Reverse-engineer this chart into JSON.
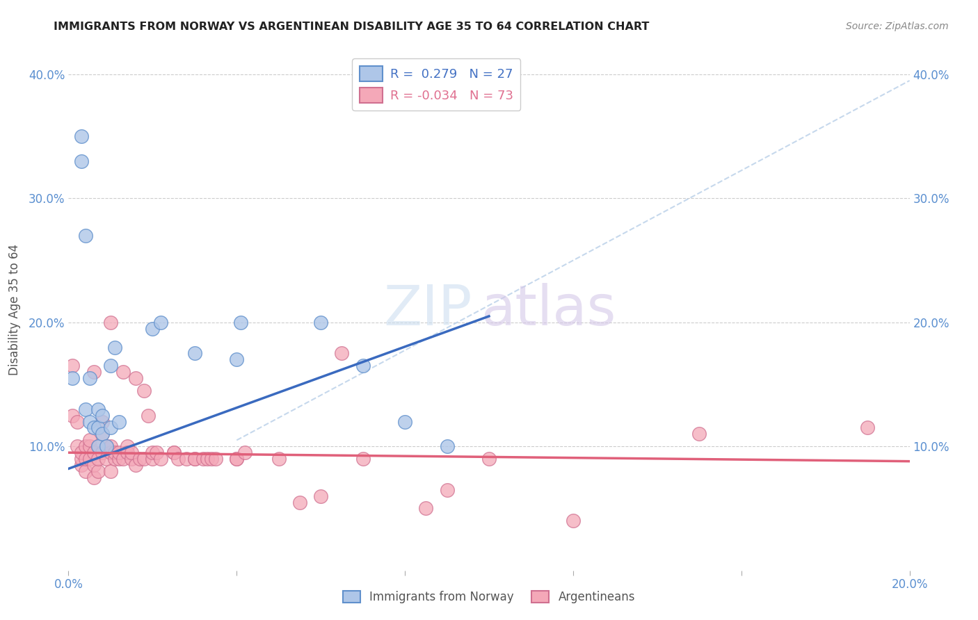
{
  "title": "IMMIGRANTS FROM NORWAY VS ARGENTINEAN DISABILITY AGE 35 TO 64 CORRELATION CHART",
  "source": "Source: ZipAtlas.com",
  "ylabel": "Disability Age 35 to 64",
  "xlim": [
    0.0,
    0.2
  ],
  "ylim": [
    0.0,
    0.42
  ],
  "xticks": [
    0.0,
    0.04,
    0.08,
    0.12,
    0.16,
    0.2
  ],
  "xtick_labels": [
    "0.0%",
    "",
    "",
    "",
    "",
    "20.0%"
  ],
  "yticks": [
    0.0,
    0.1,
    0.2,
    0.3,
    0.4
  ],
  "ytick_labels": [
    "",
    "10.0%",
    "20.0%",
    "30.0%",
    "40.0%"
  ],
  "background_color": "#ffffff",
  "grid_color": "#cccccc",
  "norway_color": "#aec6e8",
  "argentina_color": "#f4a8b8",
  "norway_line_color": "#3a6abf",
  "argentina_line_color": "#e0607a",
  "dashed_line_color": "#b8cfe8",
  "legend_norway_r": "0.279",
  "legend_norway_n": "27",
  "legend_argentina_r": "-0.034",
  "legend_argentina_n": "73",
  "norway_scatter_x": [
    0.001,
    0.003,
    0.003,
    0.004,
    0.004,
    0.005,
    0.005,
    0.006,
    0.007,
    0.007,
    0.007,
    0.008,
    0.008,
    0.009,
    0.01,
    0.01,
    0.011,
    0.012,
    0.02,
    0.022,
    0.03,
    0.04,
    0.041,
    0.06,
    0.07,
    0.08,
    0.09
  ],
  "norway_scatter_y": [
    0.155,
    0.33,
    0.35,
    0.27,
    0.13,
    0.155,
    0.12,
    0.115,
    0.1,
    0.115,
    0.13,
    0.11,
    0.125,
    0.1,
    0.115,
    0.165,
    0.18,
    0.12,
    0.195,
    0.2,
    0.175,
    0.17,
    0.2,
    0.2,
    0.165,
    0.12,
    0.1
  ],
  "argentina_scatter_x": [
    0.001,
    0.001,
    0.002,
    0.002,
    0.003,
    0.003,
    0.003,
    0.004,
    0.004,
    0.004,
    0.005,
    0.005,
    0.005,
    0.006,
    0.006,
    0.006,
    0.006,
    0.007,
    0.007,
    0.007,
    0.008,
    0.008,
    0.008,
    0.009,
    0.009,
    0.01,
    0.01,
    0.01,
    0.01,
    0.011,
    0.011,
    0.012,
    0.012,
    0.013,
    0.013,
    0.014,
    0.014,
    0.015,
    0.015,
    0.016,
    0.016,
    0.017,
    0.018,
    0.018,
    0.019,
    0.02,
    0.02,
    0.021,
    0.022,
    0.025,
    0.025,
    0.026,
    0.028,
    0.03,
    0.03,
    0.032,
    0.033,
    0.034,
    0.035,
    0.04,
    0.04,
    0.042,
    0.05,
    0.055,
    0.06,
    0.065,
    0.07,
    0.085,
    0.09,
    0.1,
    0.12,
    0.15,
    0.19
  ],
  "argentina_scatter_y": [
    0.125,
    0.165,
    0.1,
    0.12,
    0.085,
    0.09,
    0.095,
    0.08,
    0.09,
    0.1,
    0.1,
    0.105,
    0.09,
    0.075,
    0.085,
    0.095,
    0.16,
    0.08,
    0.09,
    0.1,
    0.095,
    0.11,
    0.12,
    0.09,
    0.1,
    0.08,
    0.095,
    0.1,
    0.2,
    0.09,
    0.095,
    0.09,
    0.095,
    0.16,
    0.09,
    0.1,
    0.095,
    0.09,
    0.095,
    0.085,
    0.155,
    0.09,
    0.09,
    0.145,
    0.125,
    0.09,
    0.095,
    0.095,
    0.09,
    0.095,
    0.095,
    0.09,
    0.09,
    0.09,
    0.09,
    0.09,
    0.09,
    0.09,
    0.09,
    0.09,
    0.09,
    0.095,
    0.09,
    0.055,
    0.06,
    0.175,
    0.09,
    0.05,
    0.065,
    0.09,
    0.04,
    0.11,
    0.115
  ],
  "norway_line_x0": 0.0,
  "norway_line_y0": 0.082,
  "norway_line_x1": 0.1,
  "norway_line_y1": 0.205,
  "argentina_line_x0": 0.0,
  "argentina_line_y0": 0.095,
  "argentina_line_x1": 0.2,
  "argentina_line_y1": 0.088,
  "dashed_line_x0": 0.04,
  "dashed_line_y0": 0.105,
  "dashed_line_x1": 0.2,
  "dashed_line_y1": 0.395
}
